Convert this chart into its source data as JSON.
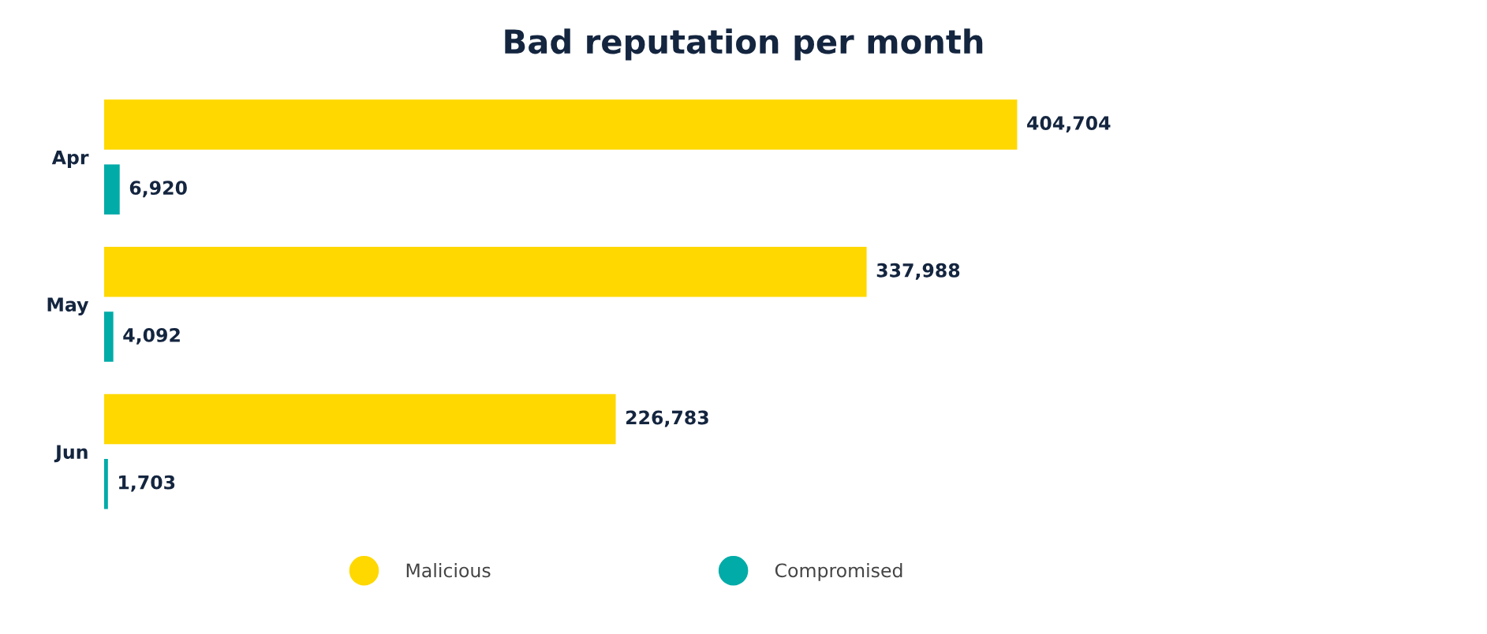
{
  "chart_data": {
    "type": "bar",
    "orientation": "horizontal",
    "title": "Bad reputation per month",
    "categories": [
      "Apr",
      "May",
      "Jun"
    ],
    "series": [
      {
        "name": "Malicious",
        "color": "#ffd800",
        "values": [
          404704,
          337988,
          226783
        ],
        "value_labels": [
          "404,704",
          "337,988",
          "226,783"
        ]
      },
      {
        "name": "Compromised",
        "color": "#00aba8",
        "values": [
          6920,
          4092,
          1703
        ],
        "value_labels": [
          "6,920",
          "4,092",
          "1,703"
        ]
      }
    ],
    "legend": "bottom",
    "grid": false
  }
}
